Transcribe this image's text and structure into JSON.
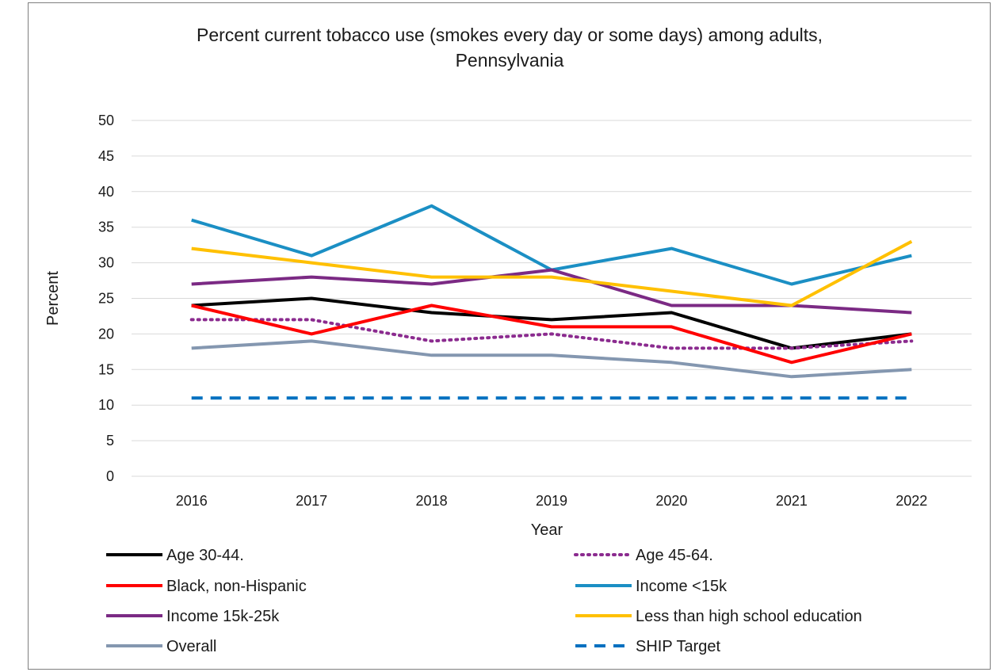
{
  "page_header_fragment": "",
  "chart_data": {
    "type": "line",
    "title": "Percent current tobacco use (smokes every day or some days) among adults, Pennsylvania",
    "title_lines": [
      "Percent current tobacco use (smokes every day or some days) among adults,",
      "Pennsylvania"
    ],
    "xlabel": "Year",
    "ylabel": "Percent",
    "x": [
      "2016",
      "2017",
      "2018",
      "2019",
      "2020",
      "2021",
      "2022"
    ],
    "ylim": [
      0,
      50
    ],
    "yticks": [
      "0",
      "5",
      "10",
      "15",
      "20",
      "25",
      "30",
      "35",
      "40",
      "45",
      "50"
    ],
    "grid": "horizontal",
    "legend_position": "bottom",
    "series": [
      {
        "name": "Age 30-44.",
        "values": [
          24,
          25,
          23,
          22,
          23,
          18,
          20
        ],
        "color": "#000000",
        "style": "solid"
      },
      {
        "name": "Age 45-64.",
        "values": [
          22,
          22,
          19,
          20,
          18,
          18,
          19
        ],
        "color": "#8b2b8f",
        "style": "dotted"
      },
      {
        "name": "Black, non-Hispanic",
        "values": [
          24,
          20,
          24,
          21,
          21,
          16,
          20
        ],
        "color": "#ff0000",
        "style": "solid"
      },
      {
        "name": "Income <15k",
        "values": [
          36,
          31,
          38,
          29,
          32,
          27,
          31
        ],
        "color": "#1b8fc4",
        "style": "solid"
      },
      {
        "name": "Income 15k-25k",
        "values": [
          27,
          28,
          27,
          29,
          24,
          24,
          23
        ],
        "color": "#7b2a84",
        "style": "solid"
      },
      {
        "name": "Less than high school education",
        "values": [
          32,
          30,
          28,
          28,
          26,
          24,
          33
        ],
        "color": "#ffc000",
        "style": "solid"
      },
      {
        "name": "Overall",
        "values": [
          18,
          19,
          17,
          17,
          16,
          14,
          15
        ],
        "color": "#8497b0",
        "style": "solid"
      },
      {
        "name": "SHIP Target",
        "values": [
          11,
          11,
          11,
          11,
          11,
          11,
          11
        ],
        "color": "#0070c0",
        "style": "dashed"
      }
    ]
  }
}
